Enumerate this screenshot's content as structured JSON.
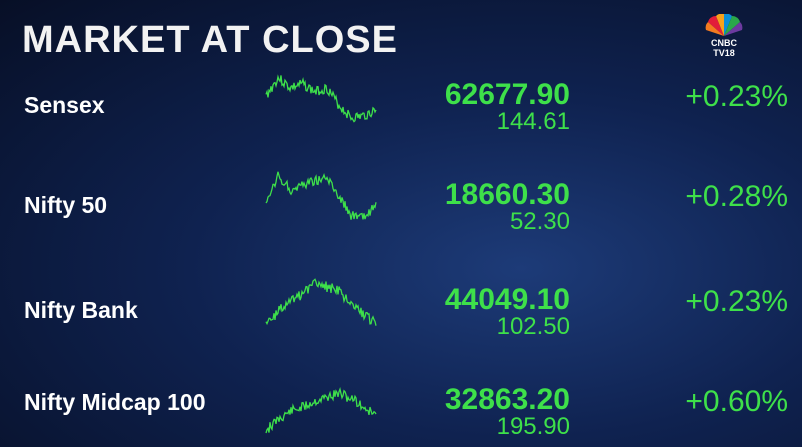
{
  "header": {
    "title": "MARKET AT CLOSE",
    "logo_text": "CNBC TV18"
  },
  "colors": {
    "positive": "#3ee04a",
    "text": "#ffffff"
  },
  "rows": [
    {
      "name": "Sensex",
      "value": "62677.90",
      "change": "144.61",
      "percent": "+0.23%"
    },
    {
      "name": "Nifty 50",
      "value": "18660.30",
      "change": "52.30",
      "percent": "+0.28%"
    },
    {
      "name": "Nifty Bank",
      "value": "44049.10",
      "change": "102.50",
      "percent": "+0.23%"
    },
    {
      "name": "Nifty Midcap 100",
      "value": "32863.20",
      "change": "195.90",
      "percent": "+0.60%"
    }
  ]
}
